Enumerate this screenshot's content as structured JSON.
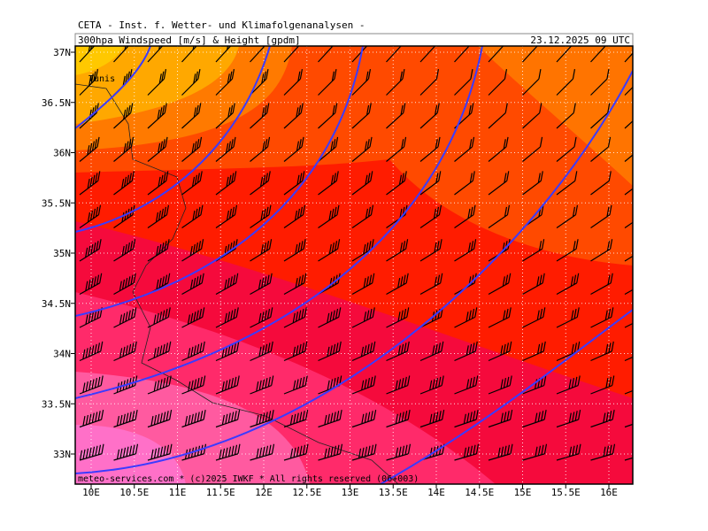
{
  "header": {
    "title": "CETA - Inst. f. Wetter- und Klimafolgenanalysen -",
    "subtitle": "300hpa Windspeed [m/s] & Height [gpdm]",
    "datetime": "23.12.2025 09 UTC"
  },
  "map": {
    "lat_labels": [
      "37N",
      "36.5N",
      "36N",
      "35.5N",
      "35N",
      "34.5N",
      "34N",
      "33.5N",
      "33N"
    ],
    "lon_labels": [
      "10E",
      "10.5E",
      "11E",
      "11.5E",
      "12E",
      "12.5E",
      "13E",
      "13.5E",
      "14E",
      "14.5E",
      "15E",
      "15.5E",
      "16E"
    ],
    "places": [
      "Tunis"
    ],
    "credit": "meteo-services.com * (c)2025 IWKF * All rights reserved (06+003)"
  }
}
